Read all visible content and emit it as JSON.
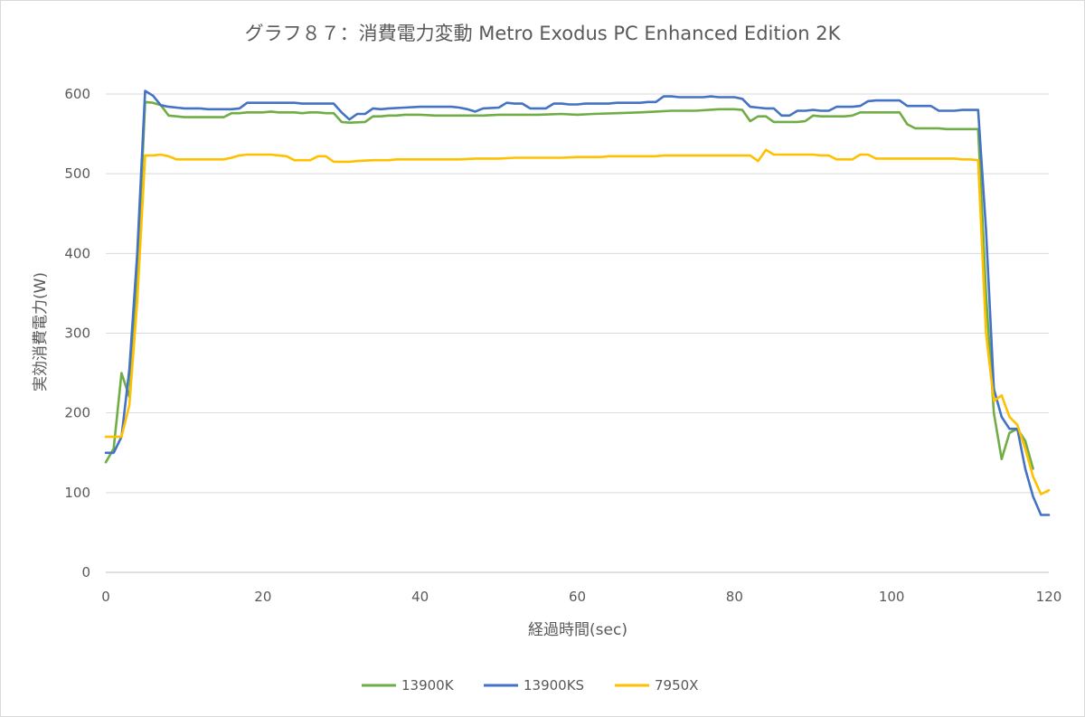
{
  "chart_data": {
    "type": "line",
    "title": "グラフ８７：消費電力変動 Metro Exodus PC Enhanced Edition 2K",
    "xlabel": "経過時間(sec)",
    "ylabel": "実効消費電力(W)",
    "xlim": [
      0,
      120
    ],
    "ylim": [
      0,
      600
    ],
    "xticks": [
      0,
      20,
      40,
      60,
      80,
      100,
      120
    ],
    "yticks": [
      0,
      100,
      200,
      300,
      400,
      500,
      600
    ],
    "grid": "horizontal",
    "legend_position": "bottom",
    "series": [
      {
        "name": "13900K",
        "color": "#70ad47",
        "points": [
          [
            0,
            138
          ],
          [
            1,
            155
          ],
          [
            2,
            250
          ],
          [
            3,
            220
          ],
          [
            4,
            370
          ],
          [
            5,
            590
          ],
          [
            6,
            589
          ],
          [
            7,
            586
          ],
          [
            8,
            573
          ],
          [
            9,
            572
          ],
          [
            10,
            571
          ],
          [
            12,
            571
          ],
          [
            14,
            571
          ],
          [
            15,
            571
          ],
          [
            16,
            576
          ],
          [
            17,
            576
          ],
          [
            18,
            577
          ],
          [
            20,
            577
          ],
          [
            21,
            578
          ],
          [
            22,
            577
          ],
          [
            24,
            577
          ],
          [
            25,
            576
          ],
          [
            26,
            577
          ],
          [
            27,
            577
          ],
          [
            28,
            576
          ],
          [
            29,
            576
          ],
          [
            30,
            565
          ],
          [
            31,
            564
          ],
          [
            33,
            565
          ],
          [
            34,
            572
          ],
          [
            35,
            572
          ],
          [
            36,
            573
          ],
          [
            37,
            573
          ],
          [
            38,
            574
          ],
          [
            40,
            574
          ],
          [
            42,
            573
          ],
          [
            45,
            573
          ],
          [
            48,
            573
          ],
          [
            50,
            574
          ],
          [
            52,
            574
          ],
          [
            55,
            574
          ],
          [
            58,
            575
          ],
          [
            60,
            574
          ],
          [
            62,
            575
          ],
          [
            65,
            576
          ],
          [
            68,
            577
          ],
          [
            70,
            578
          ],
          [
            72,
            579
          ],
          [
            75,
            579
          ],
          [
            78,
            581
          ],
          [
            80,
            581
          ],
          [
            81,
            580
          ],
          [
            82,
            566
          ],
          [
            83,
            572
          ],
          [
            84,
            572
          ],
          [
            85,
            565
          ],
          [
            86,
            565
          ],
          [
            88,
            565
          ],
          [
            89,
            566
          ],
          [
            90,
            573
          ],
          [
            91,
            572
          ],
          [
            92,
            572
          ],
          [
            94,
            572
          ],
          [
            95,
            573
          ],
          [
            96,
            577
          ],
          [
            97,
            577
          ],
          [
            98,
            577
          ],
          [
            100,
            577
          ],
          [
            101,
            577
          ],
          [
            102,
            562
          ],
          [
            103,
            557
          ],
          [
            104,
            557
          ],
          [
            105,
            557
          ],
          [
            106,
            557
          ],
          [
            107,
            556
          ],
          [
            108,
            556
          ],
          [
            110,
            556
          ],
          [
            111,
            556
          ],
          [
            112,
            350
          ],
          [
            113,
            200
          ],
          [
            114,
            142
          ],
          [
            115,
            175
          ],
          [
            116,
            180
          ],
          [
            117,
            165
          ],
          [
            118,
            130
          ]
        ]
      },
      {
        "name": "13900KS",
        "color": "#4472c4",
        "points": [
          [
            0,
            150
          ],
          [
            1,
            150
          ],
          [
            2,
            170
          ],
          [
            3,
            255
          ],
          [
            4,
            400
          ],
          [
            5,
            604
          ],
          [
            6,
            598
          ],
          [
            7,
            586
          ],
          [
            8,
            584
          ],
          [
            9,
            583
          ],
          [
            10,
            582
          ],
          [
            12,
            582
          ],
          [
            13,
            581
          ],
          [
            15,
            581
          ],
          [
            16,
            581
          ],
          [
            17,
            582
          ],
          [
            18,
            589
          ],
          [
            20,
            589
          ],
          [
            22,
            589
          ],
          [
            24,
            589
          ],
          [
            25,
            588
          ],
          [
            27,
            588
          ],
          [
            29,
            588
          ],
          [
            30,
            577
          ],
          [
            31,
            568
          ],
          [
            32,
            575
          ],
          [
            33,
            575
          ],
          [
            34,
            582
          ],
          [
            35,
            581
          ],
          [
            36,
            582
          ],
          [
            38,
            583
          ],
          [
            40,
            584
          ],
          [
            42,
            584
          ],
          [
            44,
            584
          ],
          [
            45,
            583
          ],
          [
            46,
            581
          ],
          [
            47,
            578
          ],
          [
            48,
            582
          ],
          [
            50,
            583
          ],
          [
            51,
            589
          ],
          [
            52,
            588
          ],
          [
            53,
            588
          ],
          [
            54,
            582
          ],
          [
            55,
            582
          ],
          [
            56,
            582
          ],
          [
            57,
            588
          ],
          [
            58,
            588
          ],
          [
            59,
            587
          ],
          [
            60,
            587
          ],
          [
            61,
            588
          ],
          [
            62,
            588
          ],
          [
            64,
            588
          ],
          [
            65,
            589
          ],
          [
            67,
            589
          ],
          [
            68,
            589
          ],
          [
            69,
            590
          ],
          [
            70,
            590
          ],
          [
            71,
            597
          ],
          [
            72,
            597
          ],
          [
            73,
            596
          ],
          [
            74,
            596
          ],
          [
            76,
            596
          ],
          [
            77,
            597
          ],
          [
            78,
            596
          ],
          [
            80,
            596
          ],
          [
            81,
            594
          ],
          [
            82,
            584
          ],
          [
            83,
            583
          ],
          [
            84,
            582
          ],
          [
            85,
            582
          ],
          [
            86,
            573
          ],
          [
            87,
            573
          ],
          [
            88,
            579
          ],
          [
            89,
            579
          ],
          [
            90,
            580
          ],
          [
            91,
            579
          ],
          [
            92,
            579
          ],
          [
            93,
            584
          ],
          [
            95,
            584
          ],
          [
            96,
            585
          ],
          [
            97,
            591
          ],
          [
            98,
            592
          ],
          [
            100,
            592
          ],
          [
            101,
            592
          ],
          [
            102,
            585
          ],
          [
            103,
            585
          ],
          [
            104,
            585
          ],
          [
            105,
            585
          ],
          [
            106,
            579
          ],
          [
            107,
            579
          ],
          [
            108,
            579
          ],
          [
            109,
            580
          ],
          [
            110,
            580
          ],
          [
            111,
            580
          ],
          [
            112,
            430
          ],
          [
            113,
            230
          ],
          [
            114,
            195
          ],
          [
            115,
            180
          ],
          [
            116,
            180
          ],
          [
            117,
            130
          ],
          [
            118,
            95
          ],
          [
            119,
            72
          ],
          [
            120,
            72
          ]
        ]
      },
      {
        "name": "7950X",
        "color": "#ffc000",
        "points": [
          [
            0,
            170
          ],
          [
            1,
            170
          ],
          [
            2,
            170
          ],
          [
            3,
            210
          ],
          [
            4,
            340
          ],
          [
            5,
            523
          ],
          [
            6,
            523
          ],
          [
            7,
            524
          ],
          [
            8,
            522
          ],
          [
            9,
            518
          ],
          [
            10,
            518
          ],
          [
            12,
            518
          ],
          [
            14,
            518
          ],
          [
            15,
            518
          ],
          [
            16,
            520
          ],
          [
            17,
            523
          ],
          [
            18,
            524
          ],
          [
            20,
            524
          ],
          [
            21,
            524
          ],
          [
            22,
            523
          ],
          [
            23,
            522
          ],
          [
            24,
            517
          ],
          [
            25,
            517
          ],
          [
            26,
            517
          ],
          [
            27,
            522
          ],
          [
            28,
            522
          ],
          [
            29,
            515
          ],
          [
            30,
            515
          ],
          [
            31,
            515
          ],
          [
            32,
            516
          ],
          [
            34,
            517
          ],
          [
            36,
            517
          ],
          [
            37,
            518
          ],
          [
            39,
            518
          ],
          [
            41,
            518
          ],
          [
            43,
            518
          ],
          [
            45,
            518
          ],
          [
            47,
            519
          ],
          [
            50,
            519
          ],
          [
            52,
            520
          ],
          [
            54,
            520
          ],
          [
            55,
            520
          ],
          [
            56,
            520
          ],
          [
            58,
            520
          ],
          [
            60,
            521
          ],
          [
            62,
            521
          ],
          [
            63,
            521
          ],
          [
            64,
            522
          ],
          [
            65,
            522
          ],
          [
            67,
            522
          ],
          [
            69,
            522
          ],
          [
            70,
            522
          ],
          [
            71,
            523
          ],
          [
            72,
            523
          ],
          [
            74,
            523
          ],
          [
            76,
            523
          ],
          [
            78,
            523
          ],
          [
            80,
            523
          ],
          [
            82,
            523
          ],
          [
            83,
            516
          ],
          [
            84,
            530
          ],
          [
            85,
            524
          ],
          [
            86,
            524
          ],
          [
            88,
            524
          ],
          [
            90,
            524
          ],
          [
            91,
            523
          ],
          [
            92,
            523
          ],
          [
            93,
            518
          ],
          [
            95,
            518
          ],
          [
            96,
            524
          ],
          [
            97,
            524
          ],
          [
            98,
            519
          ],
          [
            100,
            519
          ],
          [
            102,
            519
          ],
          [
            104,
            519
          ],
          [
            106,
            519
          ],
          [
            108,
            519
          ],
          [
            109,
            518
          ],
          [
            110,
            518
          ],
          [
            111,
            517
          ],
          [
            112,
            300
          ],
          [
            113,
            215
          ],
          [
            114,
            222
          ],
          [
            115,
            195
          ],
          [
            116,
            185
          ],
          [
            117,
            155
          ],
          [
            118,
            120
          ],
          [
            119,
            98
          ],
          [
            120,
            103
          ]
        ]
      }
    ]
  }
}
